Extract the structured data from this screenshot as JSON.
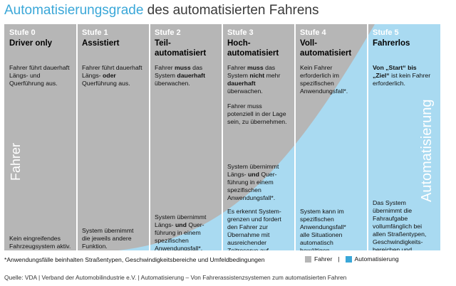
{
  "title": {
    "highlight": "Automatisierungsgrade",
    "rest": "des automatisierten Fahrens"
  },
  "colors": {
    "driver_gray": "#b6b6b6",
    "automation_blue": "#a9daf1",
    "accent": "#3aa7d8"
  },
  "stages": [
    {
      "num": "Stufe 0",
      "name": "Driver only",
      "upper": "Fahrer führt dauerhaft Längs- und Querführung aus.",
      "lower": "Kein eingreifendes Fahrzeugsystem aktiv."
    },
    {
      "num": "Stufe 1",
      "name": "Assistiert",
      "upper_a": "Fahrer führt dauerhaft Längs- ",
      "upper_b": "oder",
      "upper_c": " Querführung aus.",
      "lower": "System übernimmt die jeweils andere Funktion."
    },
    {
      "num": "Stufe 2",
      "name1": "Teil-",
      "name2": "automatisiert",
      "upper_a": "Fahrer ",
      "upper_b": "muss",
      "upper_c": " das System ",
      "upper_d": "dauerhaft",
      "upper_e": " überwachen.",
      "lower_a": "System übernimmt Längs- ",
      "lower_b": "und",
      "lower_c": " Quer-führung in einem spezifischen Anwendungsfall*."
    },
    {
      "num": "Stufe 3",
      "name1": "Hoch-",
      "name2": "automatisiert",
      "upper_a": "Fahrer ",
      "upper_b": "muss",
      "upper_c": " das System ",
      "upper_d": "nicht",
      "upper_e": " mehr ",
      "upper_f": "dauerhaft",
      "upper_g": " überwachen.",
      "upper2": "Fahrer muss potenziell in der Lage sein, zu übernehmen.",
      "mid_a": "System übernimmt Längs- ",
      "mid_b": "und",
      "mid_c": " Quer-führung in einem spezifischen Anwendungsfall*.",
      "lower": "Es erkennt System-grenzen und fordert den Fahrer zur Übernahme mit ausreichender Zeitreserve auf."
    },
    {
      "num": "Stufe 4",
      "name1": "Voll-",
      "name2": "automatisiert",
      "upper": "Kein Fahrer erforderlich im spezifischen Anwendungsfall*.",
      "lower": "System kann im spezifischen Anwendungsfall* alle Situationen automatisch bewältigen."
    },
    {
      "num": "Stufe 5",
      "name": "Fahrerlos",
      "upper_a": "Von „Start“ bis „Ziel“",
      "upper_b": " ist kein Fahrer erforderlich.",
      "lower": "Das System übernimmt die Fahraufgabe vollumfänglich bei allen Straßentypen, Geschwindigkeits-bereichen und Umfeldbedingungen."
    }
  ],
  "side_labels": {
    "left": "Fahrer",
    "right": "Automatisierung"
  },
  "footnote": "*Anwendungsfälle beinhalten Straßentypen, Geschwindigkeitsbereiche und Umfeldbedingungen",
  "legend": {
    "driver": "Fahrer",
    "separator": "|",
    "automation": "Automatisierung"
  },
  "source": "Quelle: VDA  |  Verband der Automobilindustrie e.V.  |  Automatisierung – Von Fahrerassistenzsystemen zum automatisierten Fahren"
}
